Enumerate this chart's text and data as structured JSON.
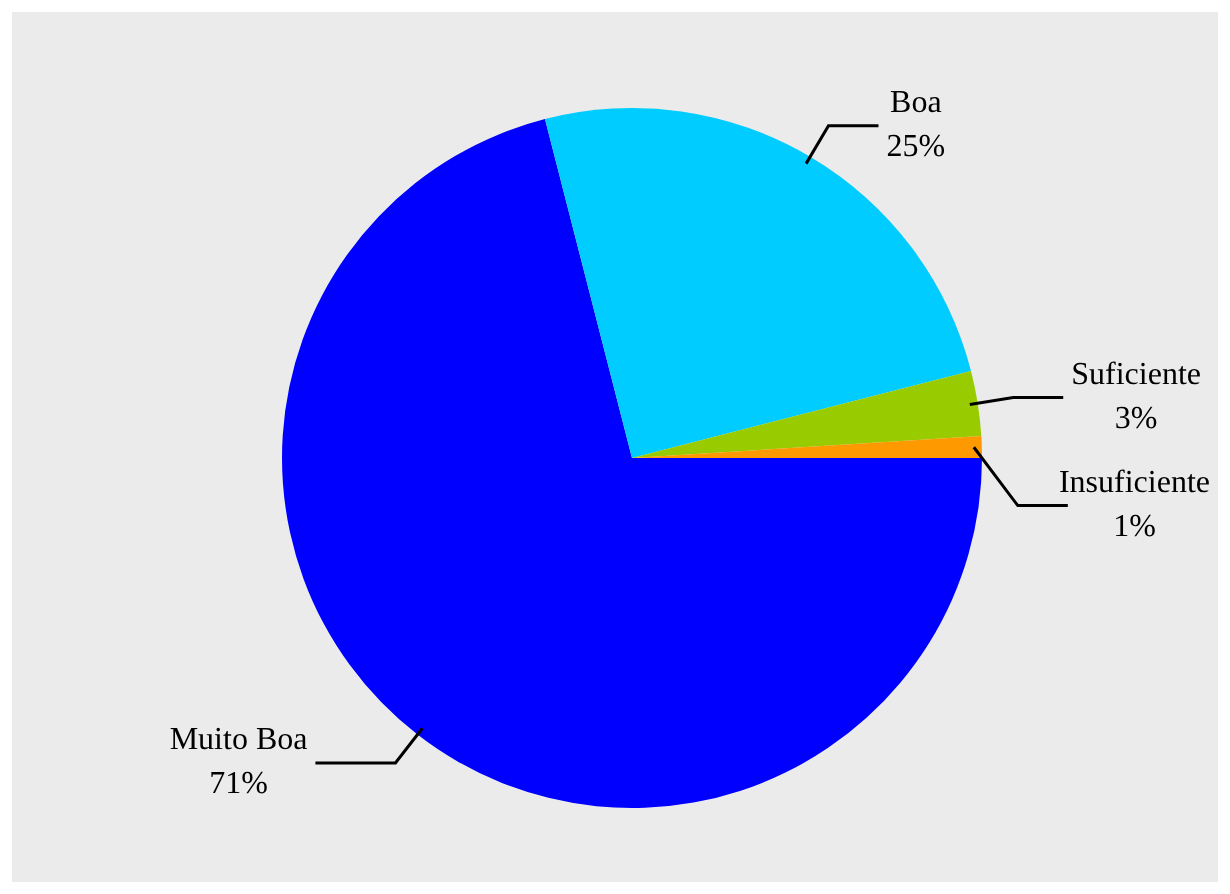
{
  "chart_data": {
    "type": "pie",
    "categories": [
      "Muito Boa",
      "Boa",
      "Suficiente",
      "Insuficiente"
    ],
    "values": [
      71,
      25,
      3,
      1
    ],
    "colors": [
      "#0000ff",
      "#00ccff",
      "#99cc00",
      "#ff9900"
    ],
    "value_labels": [
      "71%",
      "25%",
      "3%",
      "1%"
    ],
    "legend": false
  }
}
